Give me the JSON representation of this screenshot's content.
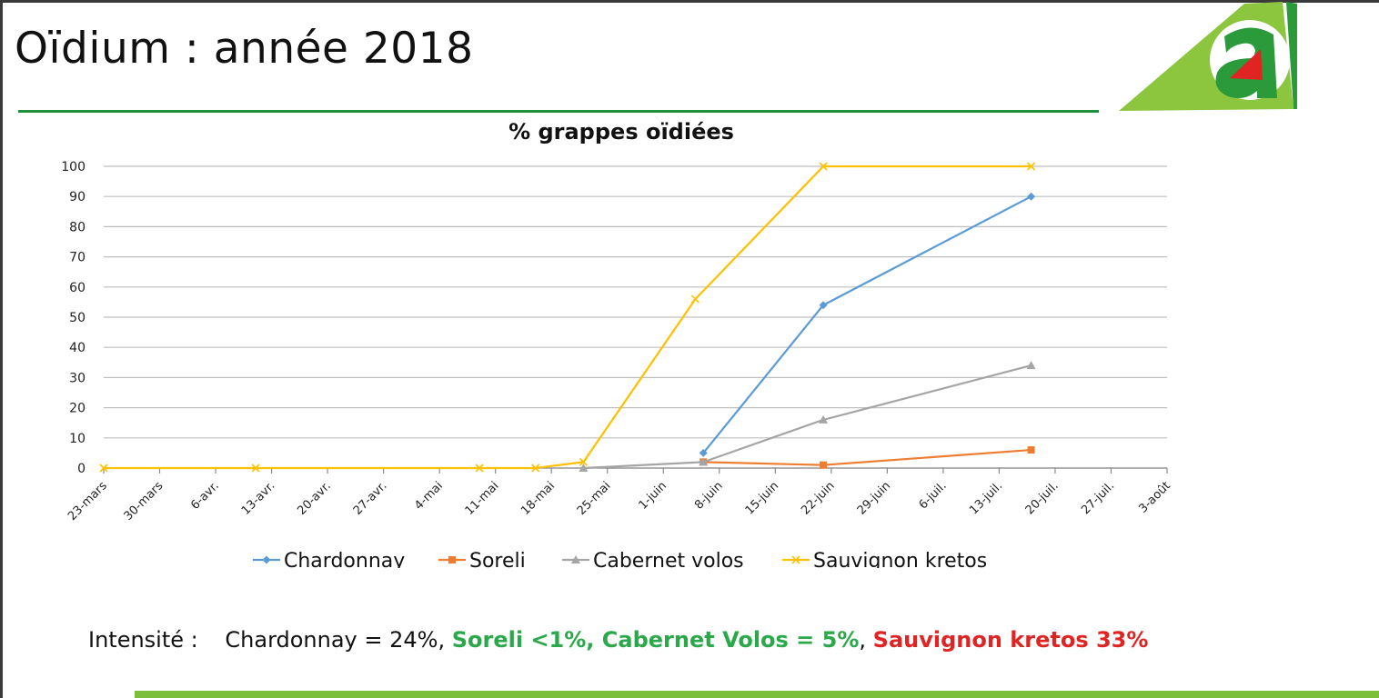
{
  "slide": {
    "title": "Oïdium : année 2018"
  },
  "brand": {
    "accent_green": "#1f8f3a",
    "logo_light_green": "#8cc63f",
    "logo_dark_green": "#2a9a3a",
    "logo_red": "#e02424",
    "bottom_bar_green": "#7cbf3a"
  },
  "chart_data": {
    "type": "line",
    "title": "% grappes oïdiées",
    "xlabel": "",
    "ylabel": "",
    "ylim": [
      0,
      100
    ],
    "yticks": [
      0,
      10,
      20,
      30,
      40,
      50,
      60,
      70,
      80,
      90,
      100
    ],
    "xlim": [
      "2018-03-23",
      "2018-08-03"
    ],
    "x_tick_dates": [
      "2018-03-23",
      "2018-03-30",
      "2018-04-06",
      "2018-04-13",
      "2018-04-20",
      "2018-04-27",
      "2018-05-04",
      "2018-05-11",
      "2018-05-18",
      "2018-05-25",
      "2018-06-01",
      "2018-06-08",
      "2018-06-15",
      "2018-06-22",
      "2018-06-29",
      "2018-07-06",
      "2018-07-13",
      "2018-07-20",
      "2018-07-27",
      "2018-08-03"
    ],
    "x_tick_labels": [
      "23-mars",
      "30-mars",
      "6-avr.",
      "13-avr.",
      "20-avr.",
      "27-avr.",
      "4-mai",
      "11-mai",
      "18-mai",
      "25-mai",
      "1-juin",
      "8-juin",
      "15-juin",
      "22-juin",
      "29-juin",
      "6-juil.",
      "13-juil.",
      "20-juil.",
      "27-juil.",
      "3-août"
    ],
    "grid": true,
    "legend_position": "bottom",
    "series": [
      {
        "name": "Chardonnay",
        "color": "#5b9bd5",
        "marker": "diamond",
        "points": [
          [
            "2018-06-06",
            5
          ],
          [
            "2018-06-21",
            54
          ],
          [
            "2018-07-17",
            90
          ]
        ]
      },
      {
        "name": "Soreli",
        "color": "#ed7d31",
        "marker": "square",
        "points": [
          [
            "2018-06-06",
            2
          ],
          [
            "2018-06-21",
            1
          ],
          [
            "2018-07-17",
            6
          ]
        ]
      },
      {
        "name": "Cabernet volos",
        "color": "#a5a5a5",
        "marker": "triangle",
        "points": [
          [
            "2018-05-22",
            0
          ],
          [
            "2018-06-06",
            2
          ],
          [
            "2018-06-21",
            16
          ],
          [
            "2018-07-17",
            34
          ]
        ]
      },
      {
        "name": "Sauvignon kretos",
        "color": "#ffc000",
        "marker": "x",
        "points": [
          [
            "2018-03-23",
            0
          ],
          [
            "2018-04-11",
            0
          ],
          [
            "2018-05-09",
            0
          ],
          [
            "2018-05-16",
            0
          ],
          [
            "2018-05-22",
            2
          ],
          [
            "2018-06-05",
            56
          ],
          [
            "2018-06-21",
            100
          ],
          [
            "2018-07-17",
            100
          ]
        ]
      }
    ]
  },
  "intensity": {
    "label": "Intensité :",
    "chardonnay": "Chardonnay = 24%,",
    "soreli": "Soreli <1%, Cabernet Volos = 5%",
    "comma": ",",
    "sauvignon": "Sauvignon kretos 33%"
  }
}
